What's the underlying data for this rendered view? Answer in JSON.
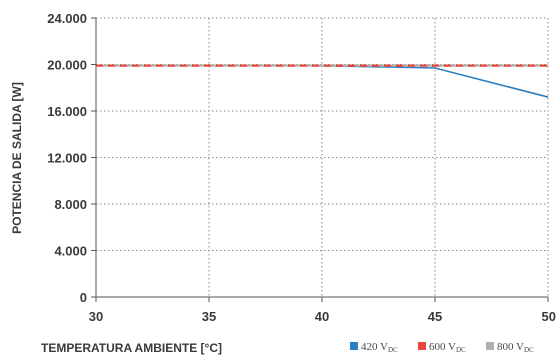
{
  "chart_data": {
    "type": "line",
    "xlabel": "TEMPERATURA AMBIENTE [°C]",
    "ylabel": "POTENCIA DE SALIDA [W]",
    "xlim": [
      30,
      50
    ],
    "ylim": [
      0,
      24000
    ],
    "x_ticks": [
      30,
      35,
      40,
      45,
      50
    ],
    "x_tick_labels": [
      "30",
      "35",
      "40",
      "45",
      "50"
    ],
    "y_ticks": [
      0,
      4000,
      8000,
      12000,
      16000,
      20000,
      24000
    ],
    "y_tick_labels": [
      "0",
      "4.000",
      "8.000",
      "12.000",
      "16.000",
      "20.000",
      "24.000"
    ],
    "grid": true,
    "legend_position": "bottom-right",
    "series": [
      {
        "name": "420 V",
        "subscript": "DC",
        "color": "#2a7fc3",
        "dash": "solid",
        "x": [
          30,
          40,
          45,
          50
        ],
        "y": [
          19900,
          19900,
          19700,
          17200
        ]
      },
      {
        "name": "600 V",
        "subscript": "DC",
        "color": "#e8443a",
        "dash": "dashed",
        "x": [
          30,
          50
        ],
        "y": [
          19900,
          19900
        ]
      },
      {
        "name": "800 V",
        "subscript": "DC",
        "color": "#b0b0b0",
        "dash": "dashed",
        "x": [
          30,
          50
        ],
        "y": [
          19900,
          19900
        ]
      }
    ]
  }
}
